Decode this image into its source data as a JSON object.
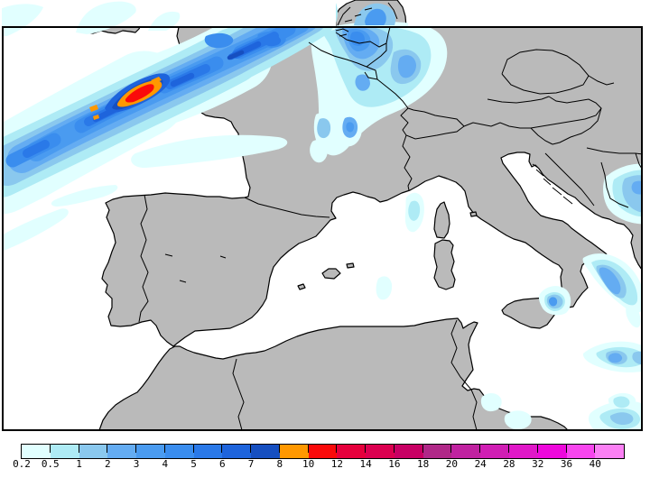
{
  "figure": {
    "kind": "precipitation-map",
    "background": "#ffffff"
  },
  "map": {
    "land_color": "#bababa",
    "sea_color": "#ffffff",
    "outline_color": "#000000",
    "frame_color": "#000000"
  },
  "legend": {
    "labels": [
      "0.2",
      "0.5",
      "1",
      "2",
      "3",
      "4",
      "5",
      "6",
      "7",
      "8",
      "10",
      "12",
      "14",
      "16",
      "18",
      "20",
      "24",
      "28",
      "32",
      "36",
      "40"
    ],
    "colors": [
      "#e1ffff",
      "#aeebf5",
      "#8ac8ee",
      "#64acf2",
      "#4a9bf0",
      "#3a8dee",
      "#2a79e8",
      "#1e64dc",
      "#164fc0",
      "#ff9800",
      "#fa0a0a",
      "#e6003c",
      "#dc0050",
      "#c80064",
      "#b02888",
      "#c022a0",
      "#d01eb4",
      "#e018c8",
      "#ee08dc",
      "#f846ee",
      "#fb80f4"
    ]
  }
}
